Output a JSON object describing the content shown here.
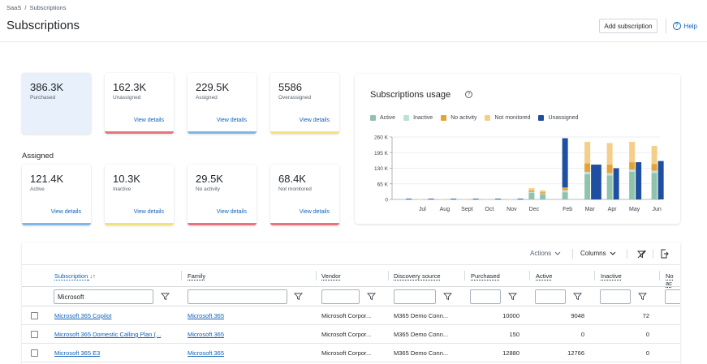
{
  "breadcrumb": {
    "root": "SaaS",
    "separator": "/",
    "current": "Subscriptions"
  },
  "page": {
    "title": "Subscriptions"
  },
  "actions": {
    "add_subscription": "Add subscription",
    "help": "Help",
    "help_glyph": "?"
  },
  "summary_cards": [
    {
      "value": "386.3K",
      "label": "Purchased",
      "link": "",
      "bar_color": ""
    },
    {
      "value": "162.3K",
      "label": "Unassigned",
      "link": "View details",
      "bar_color": "#e8737c"
    },
    {
      "value": "229.5K",
      "label": "Assigned",
      "link": "View details",
      "bar_color": "#7fb6e8"
    },
    {
      "value": "5586",
      "label": "Overassigned",
      "link": "View details",
      "bar_color": "#f3e27a"
    }
  ],
  "assigned_section": {
    "label": "Assigned"
  },
  "assigned_cards": [
    {
      "value": "121.4K",
      "label": "Active",
      "link": "View details",
      "bar_color": "#7fb6e8"
    },
    {
      "value": "10.3K",
      "label": "Inactive",
      "link": "View details",
      "bar_color": "#f3e27a"
    },
    {
      "value": "29.5K",
      "label": "No activity",
      "link": "View details",
      "bar_color": "#e8737c"
    },
    {
      "value": "68.4K",
      "label": "Not monitored",
      "link": "View details",
      "bar_color": "#e8737c"
    }
  ],
  "chart_title": "Subscriptions usage",
  "chart_info_glyph": "?",
  "chart_data": {
    "type": "bar",
    "stacked": true,
    "title": "Subscriptions usage",
    "xlabel": "",
    "ylabel": "",
    "ylim": [
      0,
      260
    ],
    "y_ticks": [
      "0",
      "65 K",
      "130 K",
      "195 K",
      "260 K"
    ],
    "legend_position": "top",
    "grid": true,
    "categories": [
      "",
      "",
      "Jul",
      "",
      "Aug",
      "",
      "Sept",
      "",
      "Oct",
      "",
      "Nov",
      "",
      "Dec",
      "",
      "",
      "Feb",
      "",
      "Mar",
      "",
      "Apr",
      "",
      "May",
      "",
      "Jun"
    ],
    "series": [
      {
        "name": "Active",
        "color": "#8fc3ac",
        "values": [
          0,
          0,
          0,
          0,
          0,
          0,
          0,
          0,
          0,
          0,
          0,
          0,
          28,
          22,
          0,
          30,
          0,
          105,
          0,
          100,
          0,
          115,
          0,
          110
        ]
      },
      {
        "name": "Inactive",
        "color": "#bfe0d4",
        "values": [
          0,
          0,
          0,
          0,
          0,
          0,
          0,
          0,
          0,
          0,
          0,
          0,
          3,
          3,
          0,
          8,
          0,
          10,
          0,
          10,
          0,
          10,
          0,
          10
        ]
      },
      {
        "name": "No activity",
        "color": "#e3a33a",
        "values": [
          0,
          0,
          0,
          0,
          0,
          0,
          0,
          0,
          0,
          0,
          0,
          0,
          7,
          5,
          0,
          12,
          0,
          35,
          0,
          35,
          0,
          30,
          0,
          28
        ]
      },
      {
        "name": "Not monitored",
        "color": "#f5cf8a",
        "values": [
          3,
          0,
          2,
          0,
          2,
          0,
          2,
          0,
          2,
          0,
          2,
          0,
          9,
          8,
          0,
          0,
          0,
          90,
          0,
          90,
          0,
          85,
          0,
          75
        ]
      },
      {
        "name": "Unassigned",
        "color": "#1f4fa0",
        "values": [
          0,
          3,
          0,
          3,
          0,
          3,
          0,
          3,
          0,
          3,
          0,
          3,
          0,
          0,
          0,
          205,
          0,
          0,
          0,
          0,
          0,
          0,
          0,
          0
        ]
      }
    ],
    "unassigned_side_bars": [
      0,
      0,
      0,
      0,
      0,
      0,
      0,
      0,
      0,
      0,
      0,
      0,
      0,
      0,
      0,
      0,
      0,
      145,
      145,
      130,
      0,
      155,
      0,
      160
    ]
  },
  "table": {
    "toolbar": {
      "actions": "Actions",
      "columns": "Columns"
    },
    "columns": [
      "Subscription",
      "Family",
      "Vendor",
      "Discovery source",
      "Purchased",
      "Active",
      "Inactive",
      "No ac"
    ],
    "filters": {
      "subscription": "Microsoft",
      "family": "",
      "vendor": "",
      "discovery": "",
      "purchased": "",
      "active": "",
      "inactive": "",
      "noac": ""
    },
    "rows": [
      {
        "subscription": "Microsoft 365 Copilot",
        "family": "Microsoft 365",
        "vendor": "Microsoft Corpor...",
        "discovery": "M365 Demo Conn...",
        "purchased": "10000",
        "active": "9048",
        "inactive": "72"
      },
      {
        "subscription": "Microsoft 365 Domestic Calling Plan (...",
        "family": "Microsoft 365",
        "vendor": "Microsoft Corpor...",
        "discovery": "M365 Demo Conn...",
        "purchased": "150",
        "active": "0",
        "inactive": "0"
      },
      {
        "subscription": "Microsoft 365 E3",
        "family": "Microsoft 365",
        "vendor": "Microsoft Corpor...",
        "discovery": "M365 Demo Conn...",
        "purchased": "12880",
        "active": "12766",
        "inactive": "0"
      }
    ]
  },
  "icons": {
    "sort": "sort-icon",
    "filter": "filter-icon",
    "clear_filter": "clear-filter-icon",
    "export": "export-icon",
    "chevron": "chevron-down-icon",
    "help": "help-icon"
  }
}
